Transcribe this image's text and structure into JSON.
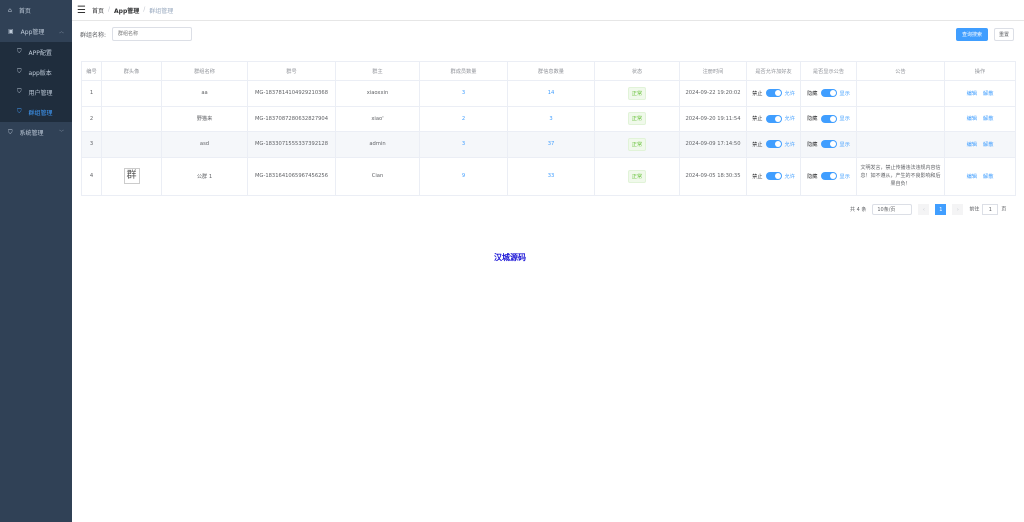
{
  "sidebar": {
    "items": [
      {
        "label": "首页",
        "icon": "home-icon"
      },
      {
        "label": "App管理",
        "icon": "app-icon",
        "expanded": true
      },
      {
        "label": "APP配置",
        "icon": "shield-icon"
      },
      {
        "label": "app版本",
        "icon": "shield-icon"
      },
      {
        "label": "用户管理",
        "icon": "shield-icon"
      },
      {
        "label": "群组管理",
        "icon": "shield-icon",
        "active": true
      },
      {
        "label": "系统管理",
        "icon": "shield-icon"
      }
    ]
  },
  "breadcrumb": [
    "首页",
    "App管理",
    "群组管理"
  ],
  "filter": {
    "label": "群组名称:",
    "placeholder": "群组名称",
    "search": "查询搜索",
    "reset": "重置"
  },
  "table": {
    "headers": [
      "编号",
      "群头像",
      "群组名称",
      "群号",
      "群主",
      "群成员数量",
      "群信息数量",
      "状态",
      "注册时间",
      "是否允许加好友",
      "是否显示公告",
      "公告",
      "操作"
    ],
    "rows": [
      {
        "id": "1",
        "avatar": "",
        "name": "aa",
        "group_no": "MG-1837814104929210368",
        "owner": "xiaoxxin",
        "members": "3",
        "messages": "14",
        "status": "正常",
        "time": "2024-09-22 19:20:02",
        "notice": ""
      },
      {
        "id": "2",
        "avatar": "",
        "name": "野猫来",
        "group_no": "MG-1837087280632827904",
        "owner": "xiao'",
        "members": "2",
        "messages": "3",
        "status": "正常",
        "time": "2024-09-20 19:11:54",
        "notice": ""
      },
      {
        "id": "3",
        "avatar": "",
        "name": "asd",
        "group_no": "MG-1833071555337392128",
        "owner": "admin",
        "members": "3",
        "messages": "37",
        "status": "正常",
        "time": "2024-09-09 17:14:50",
        "notice": ""
      },
      {
        "id": "4",
        "avatar": "群",
        "name": "公群 1",
        "group_no": "MG-1831641065967456256",
        "owner": "Cian",
        "members": "9",
        "messages": "33",
        "status": "正常",
        "time": "2024-09-05 18:30:35",
        "notice": "文明发言，禁止传播违法违规内容信息！如不遵从，产生的不良影响和后果自负！"
      }
    ],
    "switch_friend": {
      "off": "禁止",
      "on": "允许"
    },
    "switch_notice": {
      "off": "隐藏",
      "on": "显示"
    },
    "ops": {
      "edit": "编辑",
      "delete": "解散"
    }
  },
  "pagination": {
    "total": "共 4 条",
    "page_size": "10条/页",
    "current": "1",
    "goto": "前往",
    "page_unit": "页",
    "goto_value": "1"
  },
  "watermark": "汉城源码",
  "colors": {
    "sidebar": "#304156",
    "accent": "#409eff"
  }
}
